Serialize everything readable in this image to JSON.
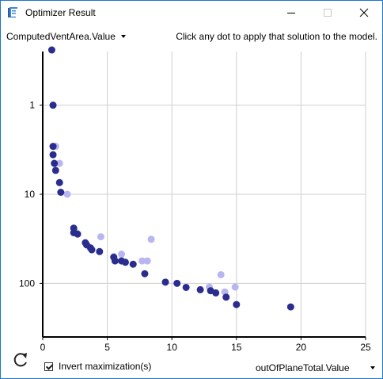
{
  "window": {
    "title": "Optimizer Result",
    "app_icon": "revit-icon",
    "controls": {
      "minimize": "minimize-icon",
      "maximize": "maximize-icon",
      "close": "close-icon"
    }
  },
  "toolbar": {
    "y_variable": "ComputedVentArea.Value",
    "hint": "Click any dot to apply that solution to the model."
  },
  "footer": {
    "refresh_icon": "refresh-icon",
    "invert_label": "Invert maximization(s)",
    "invert_checked": true,
    "x_variable": "outOfPlaneTotal.Value"
  },
  "chart_data": {
    "type": "scatter",
    "x_ticks": [
      0,
      5,
      10,
      15,
      20,
      25
    ],
    "y_ticks": [
      "1",
      "10",
      "100"
    ],
    "xlim": [
      0,
      25
    ],
    "ylim_log_inverted": [
      0.25,
      400
    ],
    "grid": true,
    "colors": {
      "primary": "#2b2d8e",
      "secondary": "#b8b6f0",
      "axis": "#000000",
      "grid": "#cfcfcf"
    },
    "series": [
      {
        "points": [
          [
            0.7,
            0.24
          ],
          [
            0.8,
            1.0
          ],
          [
            0.8,
            2.9
          ],
          [
            0.8,
            3.6
          ],
          [
            0.9,
            4.5
          ],
          [
            1.0,
            5.4
          ],
          [
            1.3,
            7.4
          ],
          [
            1.4,
            9.5
          ],
          [
            2.4,
            24
          ],
          [
            2.4,
            27
          ],
          [
            2.7,
            28
          ],
          [
            3.3,
            35
          ],
          [
            3.4,
            37
          ],
          [
            3.7,
            40
          ],
          [
            3.8,
            42
          ],
          [
            4.4,
            44
          ],
          [
            5.5,
            51
          ],
          [
            5.6,
            56
          ],
          [
            6.1,
            56
          ],
          [
            6.4,
            58
          ],
          [
            7.0,
            61
          ],
          [
            7.9,
            78
          ],
          [
            9.5,
            97
          ],
          [
            10.4,
            100
          ],
          [
            11.1,
            111
          ],
          [
            12.2,
            118
          ],
          [
            13.0,
            121
          ],
          [
            13.4,
            128
          ],
          [
            14.2,
            143
          ],
          [
            15.0,
            173
          ],
          [
            19.2,
            184
          ]
        ]
      },
      {
        "points": [
          [
            1.0,
            2.9
          ],
          [
            1.3,
            4.5
          ],
          [
            1.9,
            10
          ],
          [
            2.6,
            27
          ],
          [
            4.5,
            30
          ],
          [
            5.5,
            50
          ],
          [
            6.1,
            47
          ],
          [
            7.7,
            56
          ],
          [
            8.1,
            56
          ],
          [
            8.4,
            32
          ],
          [
            12.9,
            110
          ],
          [
            13.8,
            80
          ],
          [
            14.1,
            125
          ],
          [
            14.9,
            110
          ]
        ]
      }
    ]
  }
}
